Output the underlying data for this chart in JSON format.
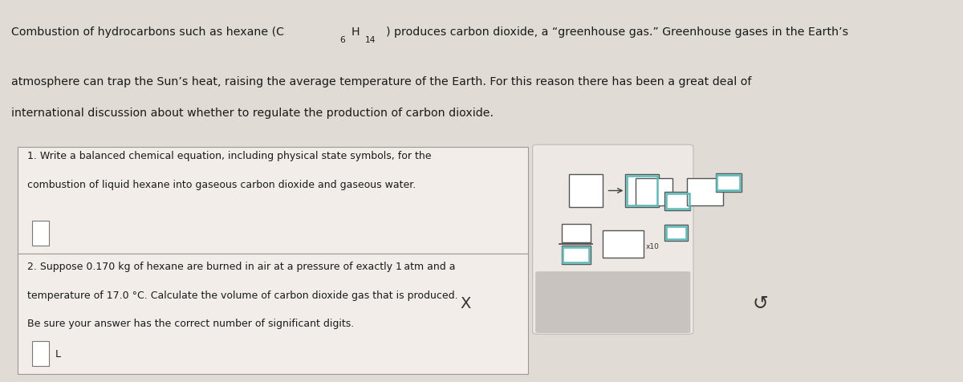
{
  "bg_color": "#e0dbd4",
  "box_bg": "#f2ede8",
  "toolbar_bg": "#ede8e3",
  "toolbar_strip_bg": "#c8c3be",
  "font_color": "#1a1a1a",
  "border_color": "#999999",
  "teal": "#5bc8c8",
  "icon_border": "#555555",
  "q1_line1": "1. Write a balanced chemical equation, including physical state symbols, for the",
  "q1_line2": "combustion of liquid hexane into gaseous carbon dioxide and gaseous water.",
  "q2_line1": "2. Suppose 0.170 kg of hexane are burned in air at a pressure of exactly 1 atm and a",
  "q2_line2": "temperature of 17.0 °C. Calculate the volume of carbon dioxide gas that is produced.",
  "q2_line3": "Be sure your answer has the correct number of significant digits.",
  "header1a": "Combustion of hydrocarbons such as hexane (C",
  "header1_sub1": "6",
  "header1b": "H",
  "header1_sub2": "14",
  "header1c": ") produces carbon dioxide, a “greenhouse gas.”",
  "header1d": " Greenhouse gases in the Earth’s",
  "header2": "atmosphere can trap the Sun’s heat, raising the average temperature of the Earth. For this reason there has been a great deal of",
  "header3": "international discussion about whether to regulate the production of carbon dioxide."
}
